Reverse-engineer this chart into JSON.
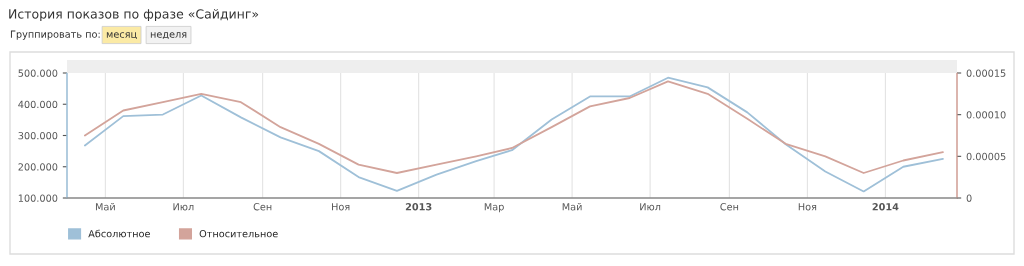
{
  "chart_data": {
    "type": "line",
    "title": "История показов по фразе «Сайдинг»",
    "annotations": [
      "Группировать по:",
      "месяц",
      "неделя"
    ],
    "x": [
      "2012-04-15",
      "2012-05-15",
      "2012-06-15",
      "2012-07-15",
      "2012-08-15",
      "2012-09-15",
      "2012-10-15",
      "2012-11-15",
      "2012-12-15",
      "2013-01-15",
      "2013-02-15",
      "2013-03-15",
      "2013-04-15",
      "2013-05-15",
      "2013-06-15",
      "2013-07-15",
      "2013-08-15",
      "2013-09-15",
      "2013-10-15",
      "2013-11-15",
      "2013-12-15",
      "2014-01-15",
      "2014-02-15"
    ],
    "series": [
      {
        "name": "Абсолютное",
        "color": "#9fc0d8",
        "values": [
          268,
          362,
          367,
          428,
          358,
          294,
          250,
          167,
          123,
          175,
          218,
          253,
          351,
          425,
          425,
          485,
          454,
          374,
          272,
          185,
          121,
          200,
          225
        ]
      },
      {
        "name": "Относительное",
        "color": "#d3a49b",
        "axis": "y2",
        "values": [
          7.5e-05,
          0.000105,
          0.000115,
          0.000125,
          0.000115,
          8.5e-05,
          6.5e-05,
          4e-05,
          3e-05,
          4e-05,
          5e-05,
          6e-05,
          8.5e-05,
          0.00011,
          0.00012,
          0.00014,
          0.000125,
          9.5e-05,
          6.5e-05,
          5e-05,
          3e-05,
          4.5e-05,
          5.5e-05
        ]
      }
    ],
    "xlim": [
      "2012-04-01",
      "2014-02-26"
    ],
    "xticks": [
      {
        "value": "2012-05-01",
        "label": "Май"
      },
      {
        "value": "2012-07-01",
        "label": "Июл"
      },
      {
        "value": "2012-09-01",
        "label": "Сен"
      },
      {
        "value": "2012-11-01",
        "label": "Ноя"
      },
      {
        "value": "2013-01-01",
        "label": "2013"
      },
      {
        "value": "2013-03-01",
        "label": "Мар"
      },
      {
        "value": "2013-05-01",
        "label": "Май"
      },
      {
        "value": "2013-07-01",
        "label": "Июл"
      },
      {
        "value": "2013-09-01",
        "label": "Сен"
      },
      {
        "value": "2013-11-01",
        "label": "Ноя"
      },
      {
        "value": "2014-01-01",
        "label": "2014"
      }
    ],
    "ylim": [
      100,
      500
    ],
    "yticks": [
      {
        "value": 100,
        "label": "100.000"
      },
      {
        "value": 200,
        "label": "200.000"
      },
      {
        "value": 300,
        "label": "300.000"
      },
      {
        "value": 400,
        "label": "400.000"
      },
      {
        "value": 500,
        "label": "500.000"
      }
    ],
    "y2lim": [
      0,
      0.00015
    ],
    "y2ticks": [
      0,
      {
        "value": 5e-05,
        "label": "0.00005"
      },
      {
        "value": 0.0001,
        "label": "0.00010"
      },
      {
        "value": 0.00015,
        "label": "0.00015"
      }
    ],
    "grid": "x",
    "legend": "bottom left",
    "marker": "none",
    "line_style": "solid"
  }
}
